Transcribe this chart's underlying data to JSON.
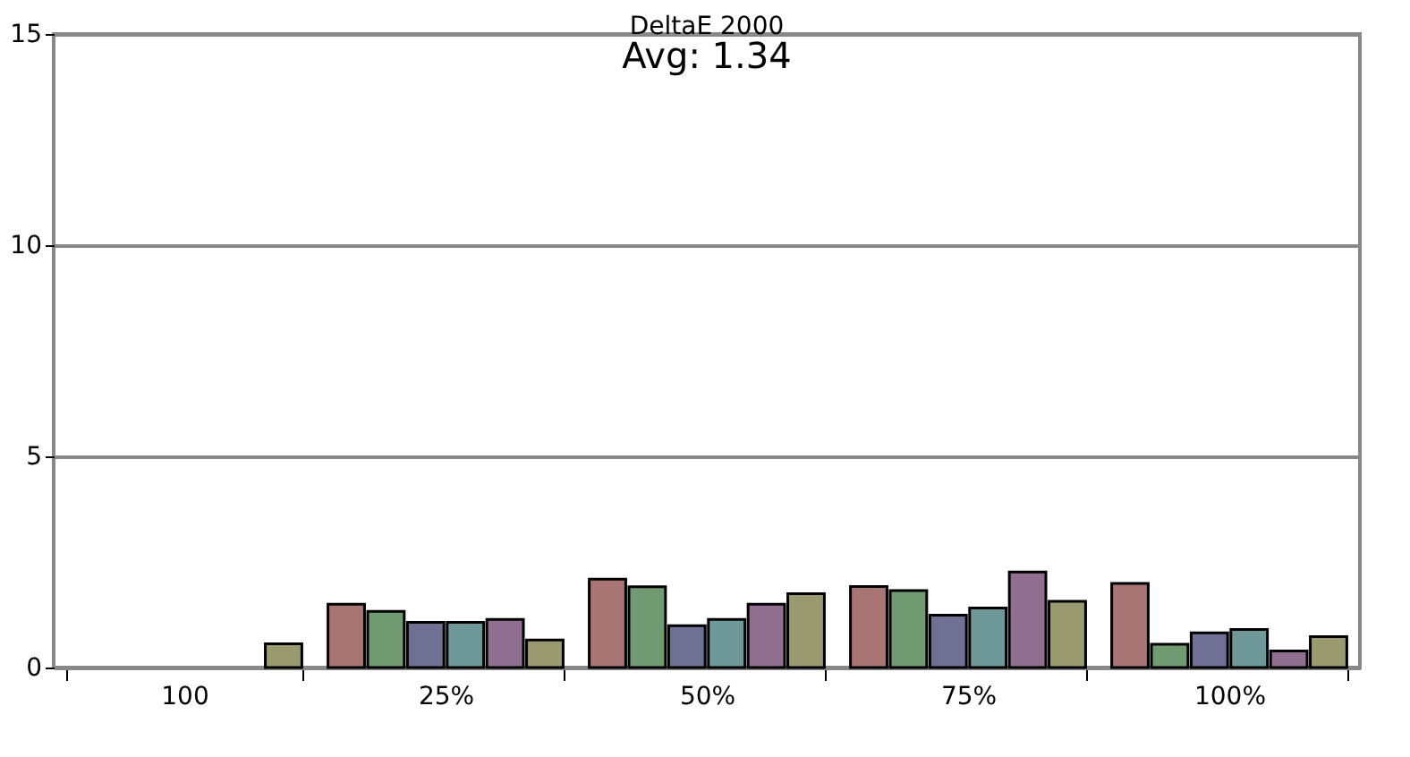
{
  "chart_data": {
    "type": "bar",
    "title": "DeltaE 2000",
    "subtitle": "Avg: 1.34",
    "categories": [
      "100",
      "25%",
      "50%",
      "75%",
      "100%"
    ],
    "series": [
      {
        "color": "#a87474",
        "values": [
          null,
          1.5,
          2.09,
          1.92,
          1.99
        ]
      },
      {
        "color": "#6f9a72",
        "values": [
          null,
          1.33,
          1.91,
          1.82,
          0.55
        ]
      },
      {
        "color": "#707094",
        "values": [
          null,
          1.07,
          0.99,
          1.24,
          0.82
        ]
      },
      {
        "color": "#6f9898",
        "values": [
          null,
          1.07,
          1.14,
          1.41,
          0.9
        ]
      },
      {
        "color": "#916f91",
        "values": [
          null,
          1.14,
          1.5,
          2.26,
          0.39
        ]
      },
      {
        "color": "#9a9a70",
        "values": [
          0.56,
          0.65,
          1.75,
          1.57,
          0.73
        ]
      }
    ],
    "ylim": [
      0,
      15
    ],
    "yticks": [
      0,
      5,
      10,
      15
    ],
    "grid": "y",
    "legend": false
  }
}
